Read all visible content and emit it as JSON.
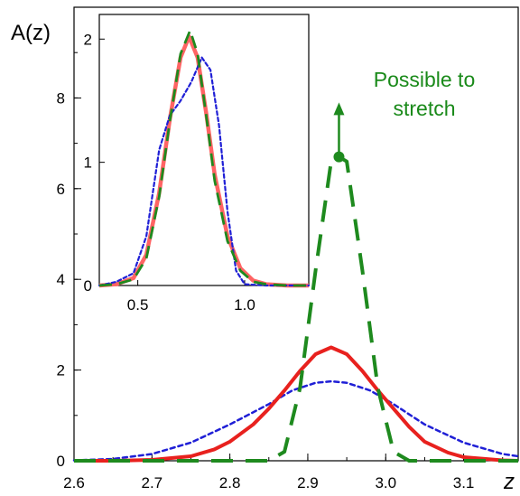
{
  "chart_data": [
    {
      "type": "line",
      "title": "",
      "xlabel": "z",
      "ylabel": "A(z)",
      "xlim": [
        2.6,
        3.17
      ],
      "ylim": [
        0,
        10
      ],
      "xticks": [
        2.6,
        2.7,
        2.8,
        2.9,
        3.0,
        3.1
      ],
      "xtick_labels": [
        "2.6",
        "2.7",
        "2.8",
        "2.9",
        "3.0",
        "3.1"
      ],
      "yticks": [
        0,
        2,
        4,
        6,
        8
      ],
      "ytick_labels": [
        "0",
        "2",
        "4",
        "6",
        "8"
      ],
      "grid": false,
      "series": [
        {
          "color": "#e8211e",
          "style": "solid",
          "x": [
            2.6,
            2.65,
            2.7,
            2.75,
            2.78,
            2.8,
            2.83,
            2.85,
            2.87,
            2.89,
            2.91,
            2.93,
            2.95,
            2.97,
            2.99,
            3.01,
            3.03,
            3.05,
            3.08,
            3.1,
            3.15,
            3.17
          ],
          "y": [
            0.0,
            0.0,
            0.02,
            0.1,
            0.25,
            0.42,
            0.8,
            1.15,
            1.55,
            1.98,
            2.35,
            2.5,
            2.35,
            1.98,
            1.55,
            1.15,
            0.75,
            0.42,
            0.18,
            0.08,
            0.01,
            0.0
          ]
        },
        {
          "color": "#1f1fd6",
          "style": "dotted",
          "x": [
            2.6,
            2.65,
            2.7,
            2.75,
            2.8,
            2.85,
            2.88,
            2.91,
            2.93,
            2.95,
            2.98,
            3.01,
            3.05,
            3.1,
            3.15,
            3.17
          ],
          "y": [
            0.01,
            0.04,
            0.15,
            0.4,
            0.8,
            1.25,
            1.55,
            1.72,
            1.75,
            1.72,
            1.55,
            1.25,
            0.8,
            0.4,
            0.15,
            0.1
          ]
        },
        {
          "color": "#1e8a1e",
          "style": "dashed",
          "x": [
            2.6,
            2.85,
            2.87,
            2.89,
            2.91,
            2.93,
            2.94,
            2.95,
            2.97,
            2.99,
            3.01,
            3.03,
            3.17
          ],
          "y": [
            0.0,
            0.0,
            0.2,
            1.6,
            4.2,
            6.6,
            6.7,
            6.6,
            4.2,
            1.6,
            0.2,
            0.0,
            0.0
          ]
        }
      ],
      "annotation": {
        "text_lines": [
          "Possible to",
          "stretch"
        ],
        "marker_x": 2.94,
        "marker_y": 6.7,
        "arrow_to_y": 7.9,
        "color": "#1e8a1e"
      }
    },
    {
      "type": "line",
      "title": "",
      "xlim": [
        0.32,
        1.3
      ],
      "ylim": [
        0,
        2.2
      ],
      "xticks": [
        0.5,
        1.0
      ],
      "xtick_labels": [
        "0.5",
        "1.0"
      ],
      "yticks": [
        0,
        1,
        2
      ],
      "ytick_labels": [
        "0",
        "1",
        "2"
      ],
      "grid": false,
      "series": [
        {
          "color": "#ff6464",
          "style": "solid",
          "x": [
            0.32,
            0.4,
            0.48,
            0.54,
            0.6,
            0.65,
            0.7,
            0.74,
            0.78,
            0.82,
            0.86,
            0.92,
            0.98,
            1.04,
            1.1,
            1.2,
            1.3
          ],
          "y": [
            0.0,
            0.01,
            0.06,
            0.25,
            0.75,
            1.35,
            1.85,
            2.02,
            1.85,
            1.4,
            0.9,
            0.4,
            0.14,
            0.04,
            0.01,
            0.0,
            0.0
          ]
        },
        {
          "color": "#1f1fd6",
          "style": "dotted",
          "x": [
            0.32,
            0.4,
            0.48,
            0.54,
            0.6,
            0.65,
            0.7,
            0.75,
            0.8,
            0.84,
            0.88,
            0.92,
            0.96,
            1.0,
            1.1,
            1.3
          ],
          "y": [
            0.0,
            0.03,
            0.1,
            0.4,
            1.1,
            1.38,
            1.5,
            1.65,
            1.85,
            1.75,
            1.3,
            0.6,
            0.12,
            0.01,
            0.0,
            0.0
          ]
        },
        {
          "color": "#1e8a1e",
          "style": "dashed",
          "x": [
            0.32,
            0.4,
            0.48,
            0.54,
            0.6,
            0.65,
            0.7,
            0.745,
            0.78,
            0.82,
            0.86,
            0.92,
            0.98,
            1.04,
            1.1,
            1.2,
            1.3
          ],
          "y": [
            0.0,
            0.01,
            0.05,
            0.22,
            0.72,
            1.33,
            1.88,
            2.07,
            1.88,
            1.38,
            0.85,
            0.36,
            0.12,
            0.03,
            0.01,
            0.0,
            0.0
          ]
        }
      ]
    }
  ]
}
